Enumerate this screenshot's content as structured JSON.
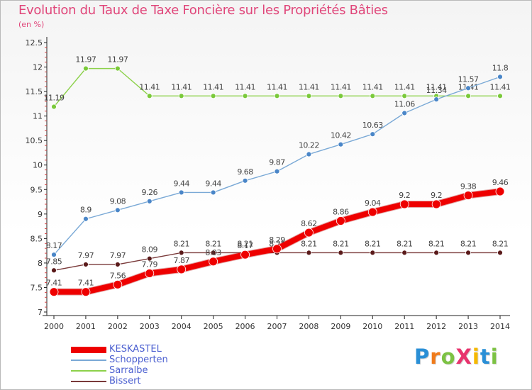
{
  "title": "Evolution du Taux de Taxe Foncière sur les Propriétés Bâties",
  "unit_label": "(en %)",
  "logo": {
    "letters": [
      {
        "ch": "P",
        "color": "#2a8fd6"
      },
      {
        "ch": "r",
        "color": "#f07b1a"
      },
      {
        "ch": "o",
        "color": "#7cc243"
      },
      {
        "ch": "X",
        "color": "#e8336d"
      },
      {
        "ch": "i",
        "color": "#f5b800"
      },
      {
        "ch": "t",
        "color": "#2a8fd6"
      },
      {
        "ch": "i",
        "color": "#7cc243"
      }
    ]
  },
  "chart_data": {
    "type": "line",
    "x": [
      "2000",
      "2001",
      "2002",
      "2003",
      "2004",
      "2005",
      "2006",
      "2007",
      "2008",
      "2009",
      "2010",
      "2011",
      "2012",
      "2013",
      "2014"
    ],
    "ylim": [
      7,
      12.5
    ],
    "yticks": [
      "7",
      "7.5",
      "8",
      "8.5",
      "9",
      "9.5",
      "10",
      "10.5",
      "11",
      "11.5",
      "12",
      "12.5"
    ],
    "grid": false,
    "legend_position": "bottom-left",
    "series": [
      {
        "name": "Sarralbe",
        "color": "#8cd14a",
        "point_color": "#7ac93a",
        "width": 1.4,
        "radius": 3.5,
        "values": [
          11.19,
          11.97,
          11.97,
          11.41,
          11.41,
          11.41,
          11.41,
          11.41,
          11.41,
          11.41,
          11.41,
          11.41,
          11.41,
          11.41,
          11.41
        ],
        "labels": [
          "11.19",
          "11.97",
          "11.97",
          "11.41",
          "11.41",
          "11.41",
          "11.41",
          "11.41",
          "11.41",
          "11.41",
          "11.41",
          "11.41",
          "11.41",
          "11.41",
          "11.41"
        ]
      },
      {
        "name": "Schopperten",
        "color": "#7aa9d6",
        "point_color": "#4a86c8",
        "width": 1.4,
        "radius": 3.5,
        "values": [
          8.17,
          8.9,
          9.08,
          9.26,
          9.44,
          9.44,
          9.68,
          9.87,
          10.22,
          10.42,
          10.63,
          11.06,
          11.34,
          11.57,
          11.8
        ],
        "labels": [
          "8.17",
          "8.9",
          "9.08",
          "9.26",
          "9.44",
          "9.44",
          "9.68",
          "9.87",
          "10.22",
          "10.42",
          "10.63",
          "11.06",
          "11.34",
          "11.57",
          "11.8"
        ]
      },
      {
        "name": "Bissert",
        "color": "#7a3a3a",
        "point_color": "#5a1a1a",
        "width": 1.4,
        "radius": 3.5,
        "values": [
          7.85,
          7.97,
          7.97,
          8.09,
          8.21,
          8.21,
          8.21,
          8.21,
          8.21,
          8.21,
          8.21,
          8.21,
          8.21,
          8.21,
          8.21
        ],
        "labels": [
          "7.85",
          "7.97",
          "7.97",
          "8.09",
          "8.21",
          "8.21",
          "8.21",
          "8.21",
          "8.21",
          "8.21",
          "8.21",
          "8.21",
          "8.21",
          "8.21",
          "8.21"
        ]
      },
      {
        "name": "KESKASTEL",
        "color": "#ee0000",
        "point_color": "#ee0000",
        "width": 8,
        "radius": 6,
        "values": [
          7.41,
          7.41,
          7.56,
          7.79,
          7.87,
          8.03,
          8.17,
          8.29,
          8.62,
          8.86,
          9.04,
          9.2,
          9.2,
          9.38,
          9.46
        ],
        "labels": [
          "7.41",
          "7.41",
          "7.56",
          "7.79",
          "7.87",
          "8.03",
          "8.17",
          "8.29",
          "8.62",
          "8.86",
          "9.04",
          "9.2",
          "9.2",
          "9.38",
          "9.46"
        ]
      }
    ],
    "legend_order": [
      "KESKASTEL",
      "Schopperten",
      "Sarralbe",
      "Bissert"
    ]
  }
}
